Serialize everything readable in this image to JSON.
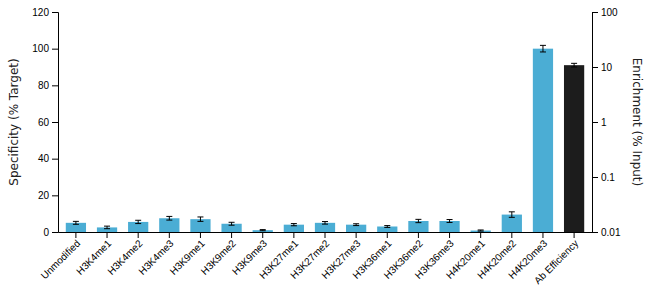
{
  "chart_data": {
    "type": "bar",
    "categories": [
      "Unmodified",
      "H3K4me1",
      "H3K4me2",
      "H3K4me3",
      "H3K9me1",
      "H3K9me2",
      "H3K9me3",
      "H3K27me1",
      "H3K27me2",
      "H3K27me3",
      "H3K36me1",
      "H3K36me2",
      "H3K36me3",
      "H4K20me1",
      "H4K20me2",
      "H4K20me3",
      "Ab Efficiency"
    ],
    "values": [
      5.0,
      2.5,
      5.5,
      7.5,
      7.0,
      4.5,
      1.0,
      4.0,
      5.0,
      4.0,
      3.0,
      6.0,
      6.0,
      0.8,
      9.5,
      100.0,
      91.0
    ],
    "errors": [
      0.8,
      0.7,
      0.9,
      1.0,
      1.2,
      0.8,
      0.3,
      0.6,
      0.7,
      0.5,
      0.5,
      0.9,
      0.8,
      0.3,
      1.5,
      1.8,
      1.0
    ],
    "colors": [
      "#4badd4",
      "#4badd4",
      "#4badd4",
      "#4badd4",
      "#4badd4",
      "#4badd4",
      "#4badd4",
      "#4badd4",
      "#4badd4",
      "#4badd4",
      "#4badd4",
      "#4badd4",
      "#4badd4",
      "#4badd4",
      "#4badd4",
      "#4badd4",
      "#1c1c1c"
    ],
    "ylabel": "Specificity (% Target)",
    "ylim": [
      0,
      120
    ],
    "yticks": [
      0,
      20,
      40,
      60,
      80,
      100,
      120
    ],
    "y2label": "Enrichment (% Input)",
    "y2lim": [
      0.01,
      100
    ],
    "y2ticks": [
      0.01,
      0.1,
      1,
      10,
      100
    ],
    "log": "y2",
    "grid": false
  }
}
